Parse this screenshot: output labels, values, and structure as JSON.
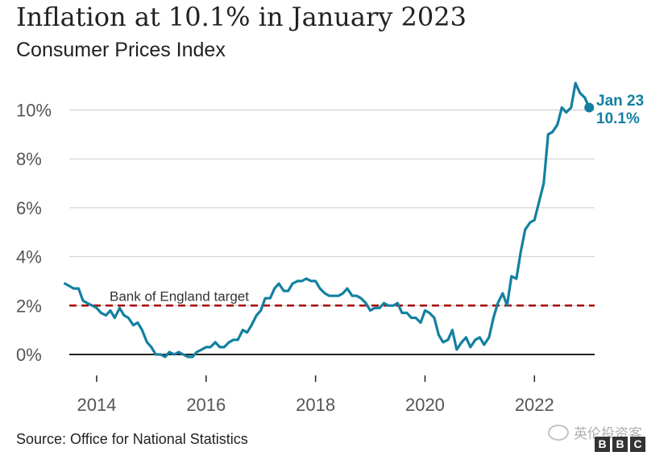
{
  "header": {
    "title": "Inflation at 10.1% in January 2023",
    "subtitle": "Consumer Prices Index"
  },
  "footer": {
    "source": "Source: Office for National Statistics",
    "watermark": "英伦投资客",
    "logo": [
      "B",
      "B",
      "C"
    ]
  },
  "colors": {
    "series": "#1380a1",
    "target": "#a50000",
    "grid": "#cccccc",
    "zero": "#222222",
    "axis_text": "#555555"
  },
  "chart_data": {
    "type": "line",
    "title": "Inflation at 10.1% in January 2023",
    "subtitle": "Consumer Prices Index",
    "xlabel": "",
    "ylabel": "",
    "ylim": [
      0,
      11
    ],
    "xlim": [
      2013.5,
      2023.1
    ],
    "grid": true,
    "yticks": [
      {
        "value": 0,
        "label": "0%"
      },
      {
        "value": 2,
        "label": "2%"
      },
      {
        "value": 4,
        "label": "4%"
      },
      {
        "value": 6,
        "label": "6%"
      },
      {
        "value": 8,
        "label": "8%"
      },
      {
        "value": 10,
        "label": "10%"
      }
    ],
    "xticks": [
      {
        "value": 2014,
        "label": "2014"
      },
      {
        "value": 2016,
        "label": "2016"
      },
      {
        "value": 2018,
        "label": "2018"
      },
      {
        "value": 2020,
        "label": "2020"
      },
      {
        "value": 2022,
        "label": "2022"
      }
    ],
    "reference_line": {
      "value": 2,
      "label": "Bank of England target"
    },
    "annotation": {
      "x": 2023.0,
      "y": 10.1,
      "line1": "Jan 23",
      "line2": "10.1%"
    },
    "series": [
      {
        "x": [
          2013.42,
          2013.5,
          2013.58,
          2013.67,
          2013.75,
          2013.83,
          2013.92,
          2014.0,
          2014.08,
          2014.17,
          2014.25,
          2014.33,
          2014.42,
          2014.5,
          2014.58,
          2014.67,
          2014.75,
          2014.83,
          2014.92,
          2015.0,
          2015.08,
          2015.17,
          2015.25,
          2015.33,
          2015.42,
          2015.5,
          2015.58,
          2015.67,
          2015.75,
          2015.83,
          2015.92,
          2016.0,
          2016.08,
          2016.17,
          2016.25,
          2016.33,
          2016.42,
          2016.5,
          2016.58,
          2016.67,
          2016.75,
          2016.83,
          2016.92,
          2017.0,
          2017.08,
          2017.17,
          2017.25,
          2017.33,
          2017.42,
          2017.5,
          2017.58,
          2017.67,
          2017.75,
          2017.83,
          2017.92,
          2018.0,
          2018.08,
          2018.17,
          2018.25,
          2018.33,
          2018.42,
          2018.5,
          2018.58,
          2018.67,
          2018.75,
          2018.83,
          2018.92,
          2019.0,
          2019.08,
          2019.17,
          2019.25,
          2019.33,
          2019.42,
          2019.5,
          2019.58,
          2019.67,
          2019.75,
          2019.83,
          2019.92,
          2020.0,
          2020.08,
          2020.17,
          2020.25,
          2020.33,
          2020.42,
          2020.5,
          2020.58,
          2020.67,
          2020.75,
          2020.83,
          2020.92,
          2021.0,
          2021.08,
          2021.17,
          2021.25,
          2021.33,
          2021.42,
          2021.5,
          2021.58,
          2021.67,
          2021.75,
          2021.83,
          2021.92,
          2022.0,
          2022.08,
          2022.17,
          2022.25,
          2022.33,
          2022.42,
          2022.5,
          2022.58,
          2022.67,
          2022.75,
          2022.83,
          2022.92,
          2023.0
        ],
        "values": [
          2.9,
          2.8,
          2.7,
          2.7,
          2.2,
          2.1,
          2.0,
          1.9,
          1.7,
          1.6,
          1.8,
          1.5,
          1.9,
          1.6,
          1.5,
          1.2,
          1.3,
          1.0,
          0.5,
          0.3,
          0.0,
          0.0,
          -0.1,
          0.1,
          0.0,
          0.1,
          0.0,
          -0.1,
          -0.1,
          0.1,
          0.2,
          0.3,
          0.3,
          0.5,
          0.3,
          0.3,
          0.5,
          0.6,
          0.6,
          1.0,
          0.9,
          1.2,
          1.6,
          1.8,
          2.3,
          2.3,
          2.7,
          2.9,
          2.6,
          2.6,
          2.9,
          3.0,
          3.0,
          3.1,
          3.0,
          3.0,
          2.7,
          2.5,
          2.4,
          2.4,
          2.4,
          2.5,
          2.7,
          2.4,
          2.4,
          2.3,
          2.1,
          1.8,
          1.9,
          1.9,
          2.1,
          2.0,
          2.0,
          2.1,
          1.7,
          1.7,
          1.5,
          1.5,
          1.3,
          1.8,
          1.7,
          1.5,
          0.8,
          0.5,
          0.6,
          1.0,
          0.2,
          0.5,
          0.7,
          0.3,
          0.6,
          0.7,
          0.4,
          0.7,
          1.5,
          2.1,
          2.5,
          2.0,
          3.2,
          3.1,
          4.2,
          5.1,
          5.4,
          5.5,
          6.2,
          7.0,
          9.0,
          9.1,
          9.4,
          10.1,
          9.9,
          10.1,
          11.1,
          10.7,
          10.5,
          10.1
        ]
      }
    ]
  }
}
